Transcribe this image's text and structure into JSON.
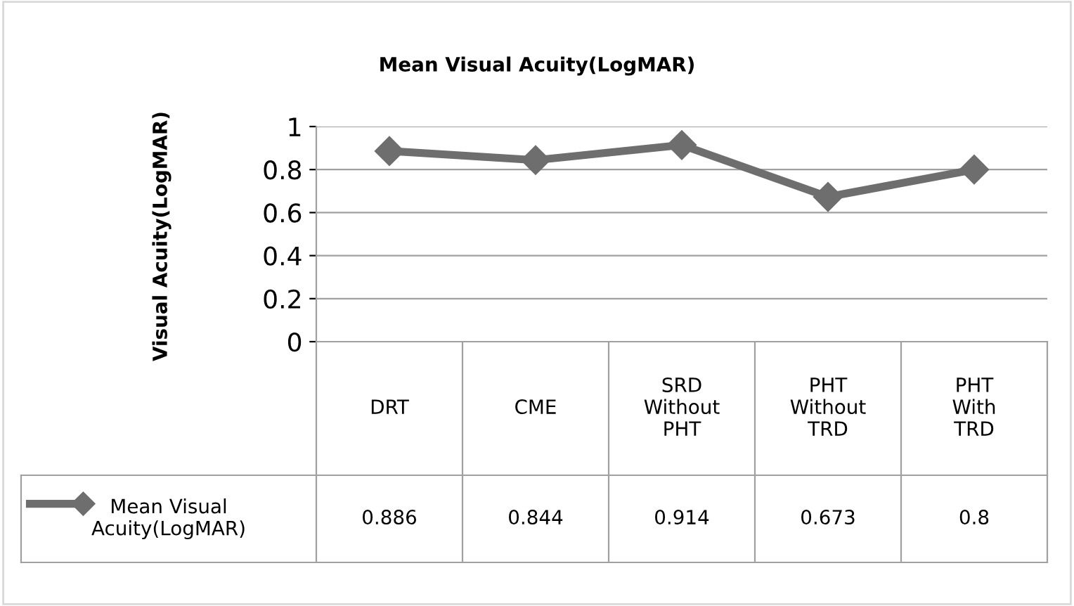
{
  "chart_data": {
    "type": "line",
    "title": "Mean Visual Acuity(LogMAR)",
    "ylabel": "Visual Acuity(LogMAR)",
    "categories": [
      "DRT",
      "CME",
      "SRD\nWithout\nPHT",
      "PHT\nWithout\nTRD",
      "PHT\nWith\nTRD"
    ],
    "series": [
      {
        "name": "Mean Visual\nAcuity(LogMAR)",
        "color": "#6e6e6e",
        "values": [
          0.886,
          0.844,
          0.914,
          0.673,
          0.8
        ]
      }
    ],
    "ylim": [
      0,
      1
    ],
    "yticks": [
      0,
      0.2,
      0.4,
      0.6,
      0.8,
      1
    ],
    "grid": "y",
    "marker": "diamond",
    "line_style": "solid",
    "data_labels": true
  }
}
